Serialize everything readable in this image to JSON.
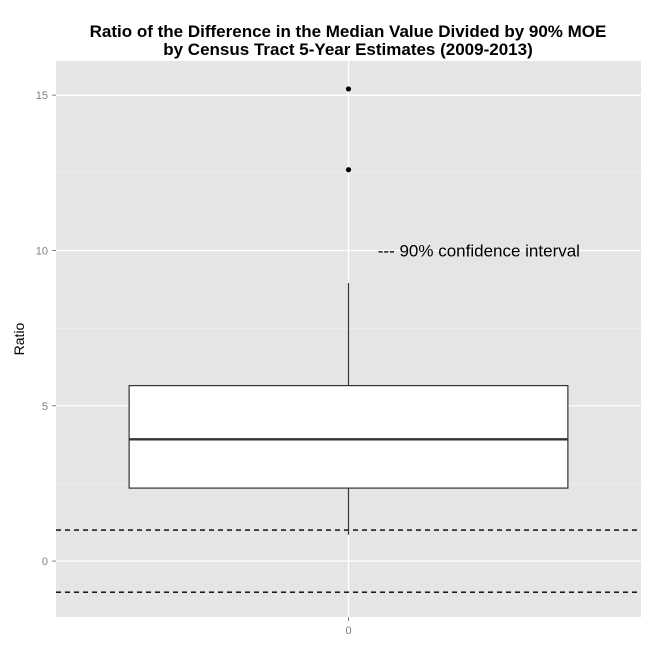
{
  "chart_data": {
    "type": "boxplot",
    "title": "Ratio of the Difference in the Median Value Divided by 90% MOE",
    "subtitle": "by Census Tract 5-Year Estimates (2009-2013)",
    "xlabel": "",
    "ylabel": "Ratio",
    "x_categories": [
      "0"
    ],
    "y_ticks": [
      0,
      5,
      10,
      15
    ],
    "ylim": [
      -1.8,
      16.1
    ],
    "grid": true,
    "box": {
      "category": "0",
      "q1": 2.35,
      "median": 3.92,
      "q3": 5.65,
      "whisker_low": 0.85,
      "whisker_high": 8.95,
      "outliers": [
        12.6,
        15.2
      ]
    },
    "reference_lines": [
      {
        "y": 1,
        "style": "dashed"
      },
      {
        "y": -1,
        "style": "dashed"
      }
    ],
    "annotation": {
      "text": "--- 90% confidence interval",
      "x": 0.06,
      "y": 10.0
    },
    "colors": {
      "panel_bg": "#e5e5e5",
      "grid_major": "#ffffff",
      "grid_minor": "#f2f2f2",
      "box_fill": "#ffffff",
      "box_stroke": "#333333"
    }
  }
}
